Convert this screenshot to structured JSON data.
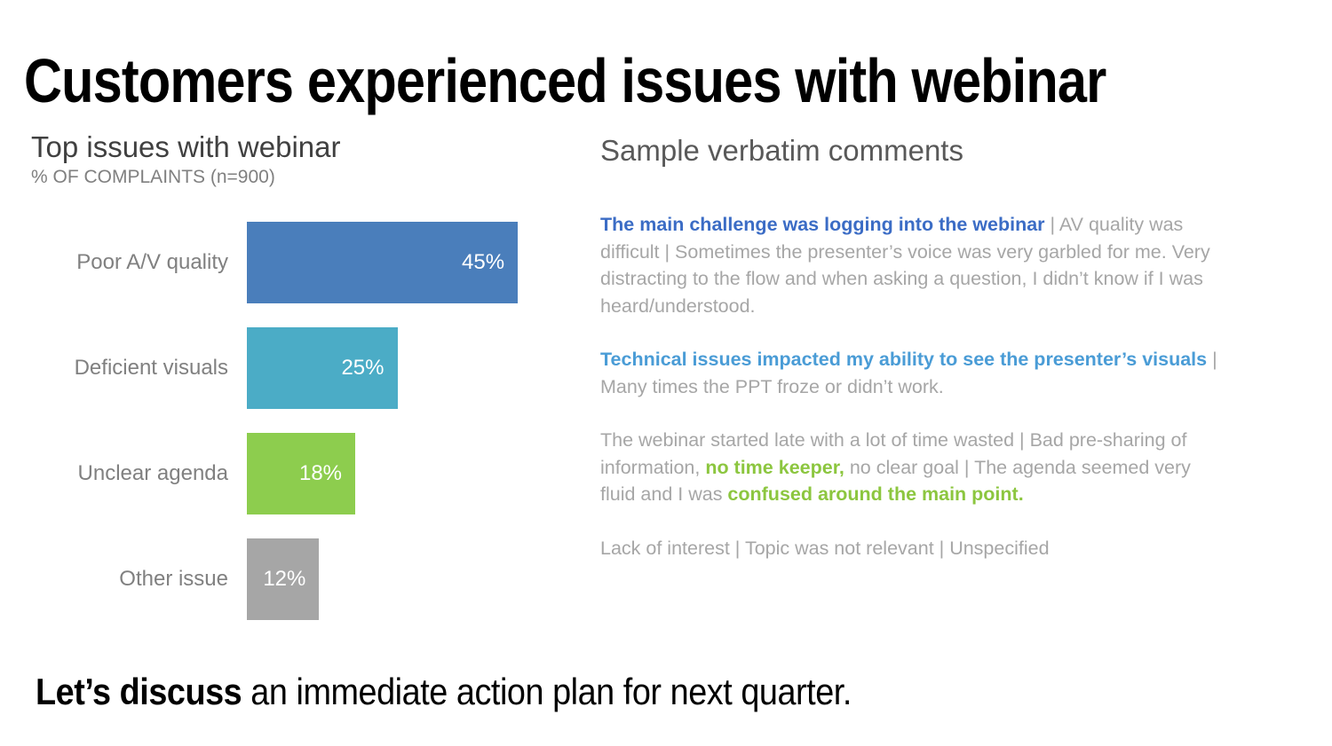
{
  "slide": {
    "title": "Customers experienced issues with webinar",
    "footer_bold": "Let’s discuss",
    "footer_rest": " an immediate action plan for next quarter."
  },
  "chart": {
    "title": "Top issues with webinar",
    "subtitle": "% OF COMPLAINTS (n=900)"
  },
  "chart_data": {
    "type": "bar",
    "orientation": "horizontal",
    "title": "Top issues with webinar",
    "subtitle": "% OF COMPLAINTS (n=900)",
    "sample_size": 900,
    "categories": [
      "Poor A/V quality",
      "Deficient visuals",
      "Unclear agenda",
      "Other issue"
    ],
    "values": [
      45,
      25,
      18,
      12
    ],
    "value_labels": [
      "45%",
      "25%",
      "18%",
      "12%"
    ],
    "bar_colors": [
      "#4A7EBB",
      "#4BACC6",
      "#8DCD4E",
      "#A6A6A6"
    ],
    "unit": "%",
    "xlim": [
      0,
      50
    ],
    "grid": false,
    "legend": false,
    "value_label_position": "inside-end"
  },
  "comments": {
    "heading": "Sample verbatim comments",
    "paragraphs": [
      {
        "segments": [
          {
            "style": "bold-blue",
            "text": "The main challenge was logging into the webinar"
          },
          {
            "style": "gray",
            "text": " | AV quality was difficult | Sometimes the presenter’s voice was very garbled for me. Very distracting to the flow and when asking a question, I didn’t know if I was heard/understood."
          }
        ]
      },
      {
        "segments": [
          {
            "style": "bold-lightblue",
            "text": "Technical issues impacted my ability to see the presenter’s visuals"
          },
          {
            "style": "gray",
            "text": " | Many times the PPT froze or didn’t work."
          }
        ]
      },
      {
        "segments": [
          {
            "style": "gray",
            "text": "The webinar started late with a lot of time wasted | Bad pre-sharing of information, "
          },
          {
            "style": "bold-green",
            "text": "no time keeper,"
          },
          {
            "style": "gray",
            "text": " no clear goal | The agenda seemed very fluid and I was "
          },
          {
            "style": "bold-green",
            "text": "confused around the main point."
          }
        ]
      },
      {
        "segments": [
          {
            "style": "gray",
            "text": "Lack of interest | Topic was not relevant | Unspecified"
          }
        ]
      }
    ]
  },
  "colors": {
    "accent_blue": "#3B6CC5",
    "accent_lightblue": "#4A9CD6",
    "accent_green": "#8CC63F",
    "bar_blue": "#4A7EBB",
    "bar_teal": "#4BACC6",
    "bar_green": "#8DCD4E",
    "bar_gray": "#A6A6A6",
    "text_gray": "#A6A6A6",
    "label_gray": "#808080",
    "heading_gray": "#595959",
    "title_dark": "#404040"
  }
}
